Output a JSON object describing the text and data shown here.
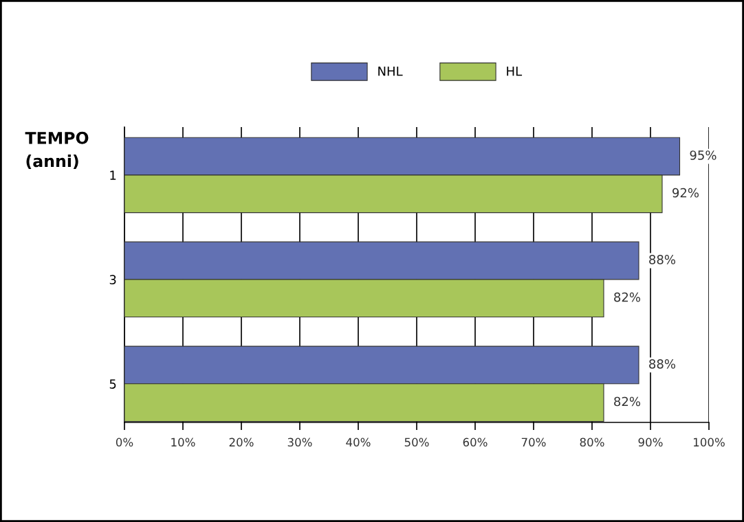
{
  "chart_data": {
    "type": "bar",
    "orientation": "horizontal",
    "ylabel": "TEMPO\n(anni)",
    "categories": [
      "1",
      "3",
      "5"
    ],
    "series": [
      {
        "name": "NHL",
        "color": "#6271b3",
        "values": [
          95,
          88,
          88
        ],
        "value_labels": [
          "95%",
          "88%",
          "88%"
        ]
      },
      {
        "name": "HL",
        "color": "#a8c65a",
        "values": [
          92,
          82,
          82
        ],
        "value_labels": [
          "92%",
          "82%",
          "82%"
        ]
      }
    ],
    "xlim": [
      0,
      100
    ],
    "xticks": [
      {
        "value": 0,
        "label": "0%"
      },
      {
        "value": 10,
        "label": "10%"
      },
      {
        "value": 20,
        "label": "20%"
      },
      {
        "value": 30,
        "label": "30%"
      },
      {
        "value": 40,
        "label": "40%"
      },
      {
        "value": 50,
        "label": "50%"
      },
      {
        "value": 60,
        "label": "60%"
      },
      {
        "value": 70,
        "label": "70%"
      },
      {
        "value": 80,
        "label": "80%"
      },
      {
        "value": 90,
        "label": "90%"
      },
      {
        "value": 100,
        "label": "100%"
      }
    ],
    "grid": "x",
    "legend": "top"
  }
}
